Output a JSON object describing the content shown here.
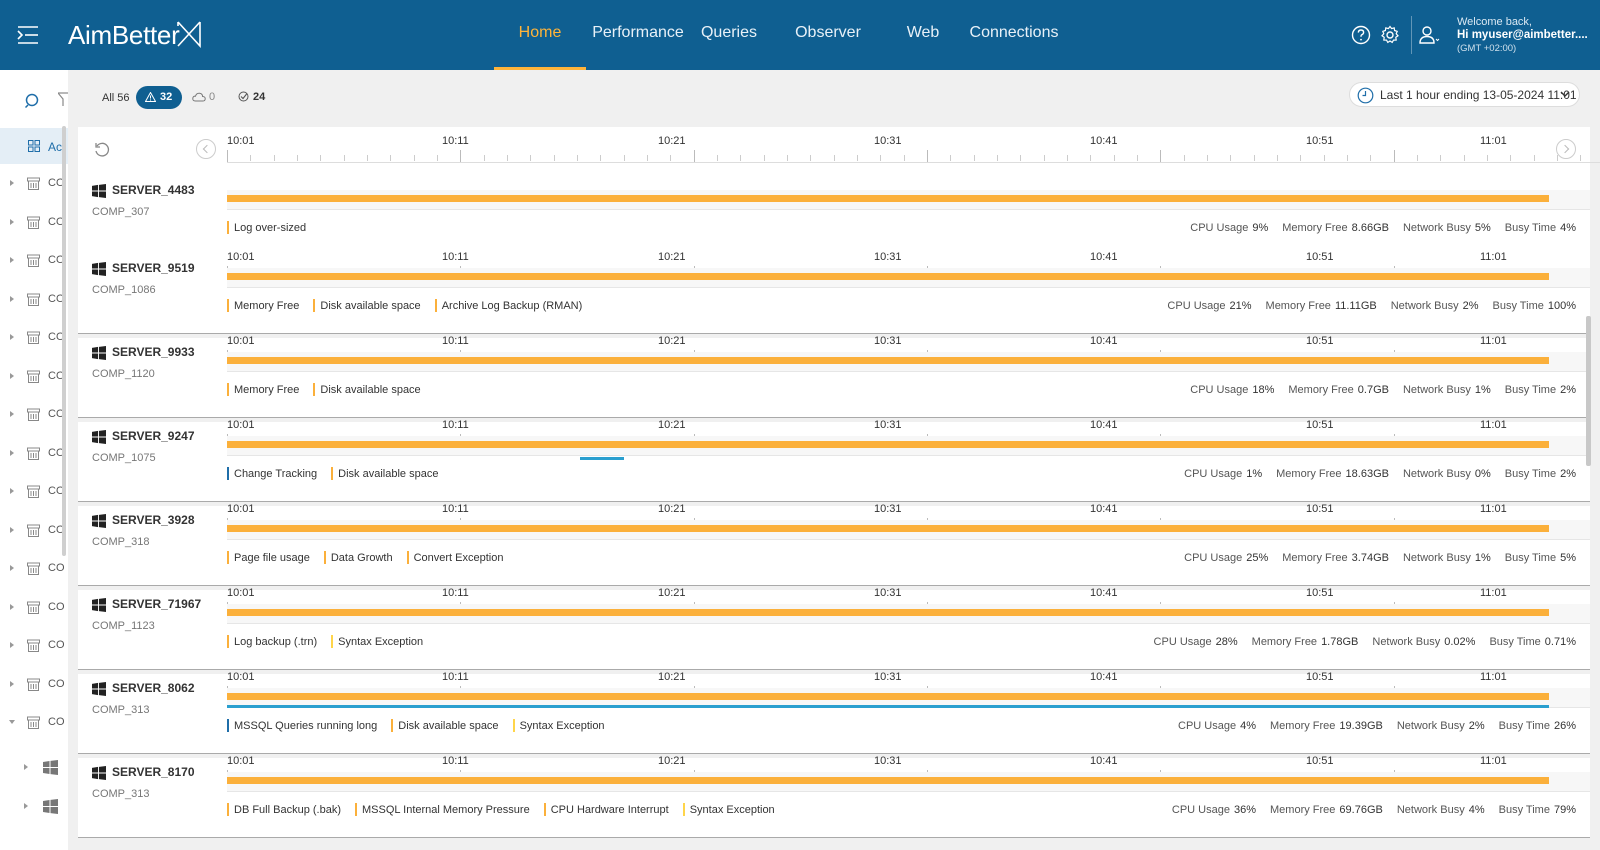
{
  "header": {
    "logo_text": "AimBetter",
    "nav": [
      {
        "label": "Home",
        "active": true
      },
      {
        "label": "Performance"
      },
      {
        "label": "Queries"
      },
      {
        "label": "Observer"
      },
      {
        "label": "Web"
      },
      {
        "label": "Connections"
      }
    ],
    "user": {
      "welcome": "Welcome back,",
      "name": "Hi myuser@aimbetter....",
      "timezone": "(GMT +02:00)"
    }
  },
  "sidebar": {
    "active_label": "Ac",
    "item_label": "CO",
    "items_count": 15
  },
  "filters": {
    "all": "All 56",
    "alerts": "32",
    "cloud": "0",
    "ok": "24",
    "time_range": "Last 1 hour ending  13-05-2024 11:01"
  },
  "timeline": {
    "ticks": [
      "10:01",
      "10:11",
      "10:21",
      "10:31",
      "10:41",
      "10:51",
      "11:01"
    ]
  },
  "metric_labels": {
    "cpu": "CPU Usage",
    "mem": "Memory Free",
    "net": "Network Busy",
    "busy": "Busy Time"
  },
  "servers": [
    {
      "name": "SERVER_4483",
      "comp": "COMP_307",
      "alerts": [
        {
          "t": "Log over-sized",
          "c": "orange"
        }
      ],
      "cpu": "9%",
      "mem": "8.66GB",
      "net": "5%",
      "busy": "4%",
      "events": []
    },
    {
      "name": "SERVER_9519",
      "comp": "COMP_1086",
      "alerts": [
        {
          "t": "Memory Free",
          "c": "orange"
        },
        {
          "t": "Disk available space",
          "c": "orange"
        },
        {
          "t": "Archive Log Backup (RMAN)",
          "c": "orange"
        }
      ],
      "cpu": "21%",
      "mem": "11.11GB",
      "net": "2%",
      "busy": "100%",
      "events": []
    },
    {
      "name": "SERVER_9933",
      "comp": "COMP_1120",
      "alerts": [
        {
          "t": "Memory Free",
          "c": "orange"
        },
        {
          "t": "Disk available space",
          "c": "orange"
        }
      ],
      "cpu": "18%",
      "mem": "0.7GB",
      "net": "1%",
      "busy": "2%",
      "events": []
    },
    {
      "name": "SERVER_9247",
      "comp": "COMP_1075",
      "alerts": [
        {
          "t": "Change Tracking",
          "c": "blue"
        },
        {
          "t": "Disk available space",
          "c": "orange"
        }
      ],
      "cpu": "1%",
      "mem": "18.63GB",
      "net": "0%",
      "busy": "2%",
      "events": [
        {
          "start": 0.267,
          "end": 0.3
        }
      ]
    },
    {
      "name": "SERVER_3928",
      "comp": "COMP_318",
      "alerts": [
        {
          "t": "Page file usage",
          "c": "orange"
        },
        {
          "t": "Data Growth",
          "c": "orange"
        },
        {
          "t": "Convert Exception",
          "c": "orange"
        }
      ],
      "cpu": "25%",
      "mem": "3.74GB",
      "net": "1%",
      "busy": "5%",
      "events": []
    },
    {
      "name": "SERVER_71967",
      "comp": "COMP_1123",
      "alerts": [
        {
          "t": "Log backup (.trn)",
          "c": "orange"
        },
        {
          "t": "Syntax Exception",
          "c": "yellow"
        }
      ],
      "cpu": "28%",
      "mem": "1.78GB",
      "net": "0.02%",
      "busy": "0.71%",
      "events": []
    },
    {
      "name": "SERVER_8062",
      "comp": "COMP_313",
      "alerts": [
        {
          "t": "MSSQL Queries running long",
          "c": "blue"
        },
        {
          "t": "Disk available space",
          "c": "orange"
        },
        {
          "t": "Syntax Exception",
          "c": "yellow"
        }
      ],
      "cpu": "4%",
      "mem": "19.39GB",
      "net": "2%",
      "busy": "26%",
      "events": [
        {
          "start": 0.0,
          "end": 1.0
        }
      ]
    },
    {
      "name": "SERVER_8170",
      "comp": "COMP_313",
      "alerts": [
        {
          "t": "DB Full Backup (.bak)",
          "c": "orange"
        },
        {
          "t": "MSSQL Internal Memory Pressure",
          "c": "orange"
        },
        {
          "t": "CPU Hardware Interrupt",
          "c": "orange"
        },
        {
          "t": "Syntax Exception",
          "c": "yellow"
        }
      ],
      "cpu": "36%",
      "mem": "69.76GB",
      "net": "4%",
      "busy": "79%",
      "events": []
    }
  ]
}
